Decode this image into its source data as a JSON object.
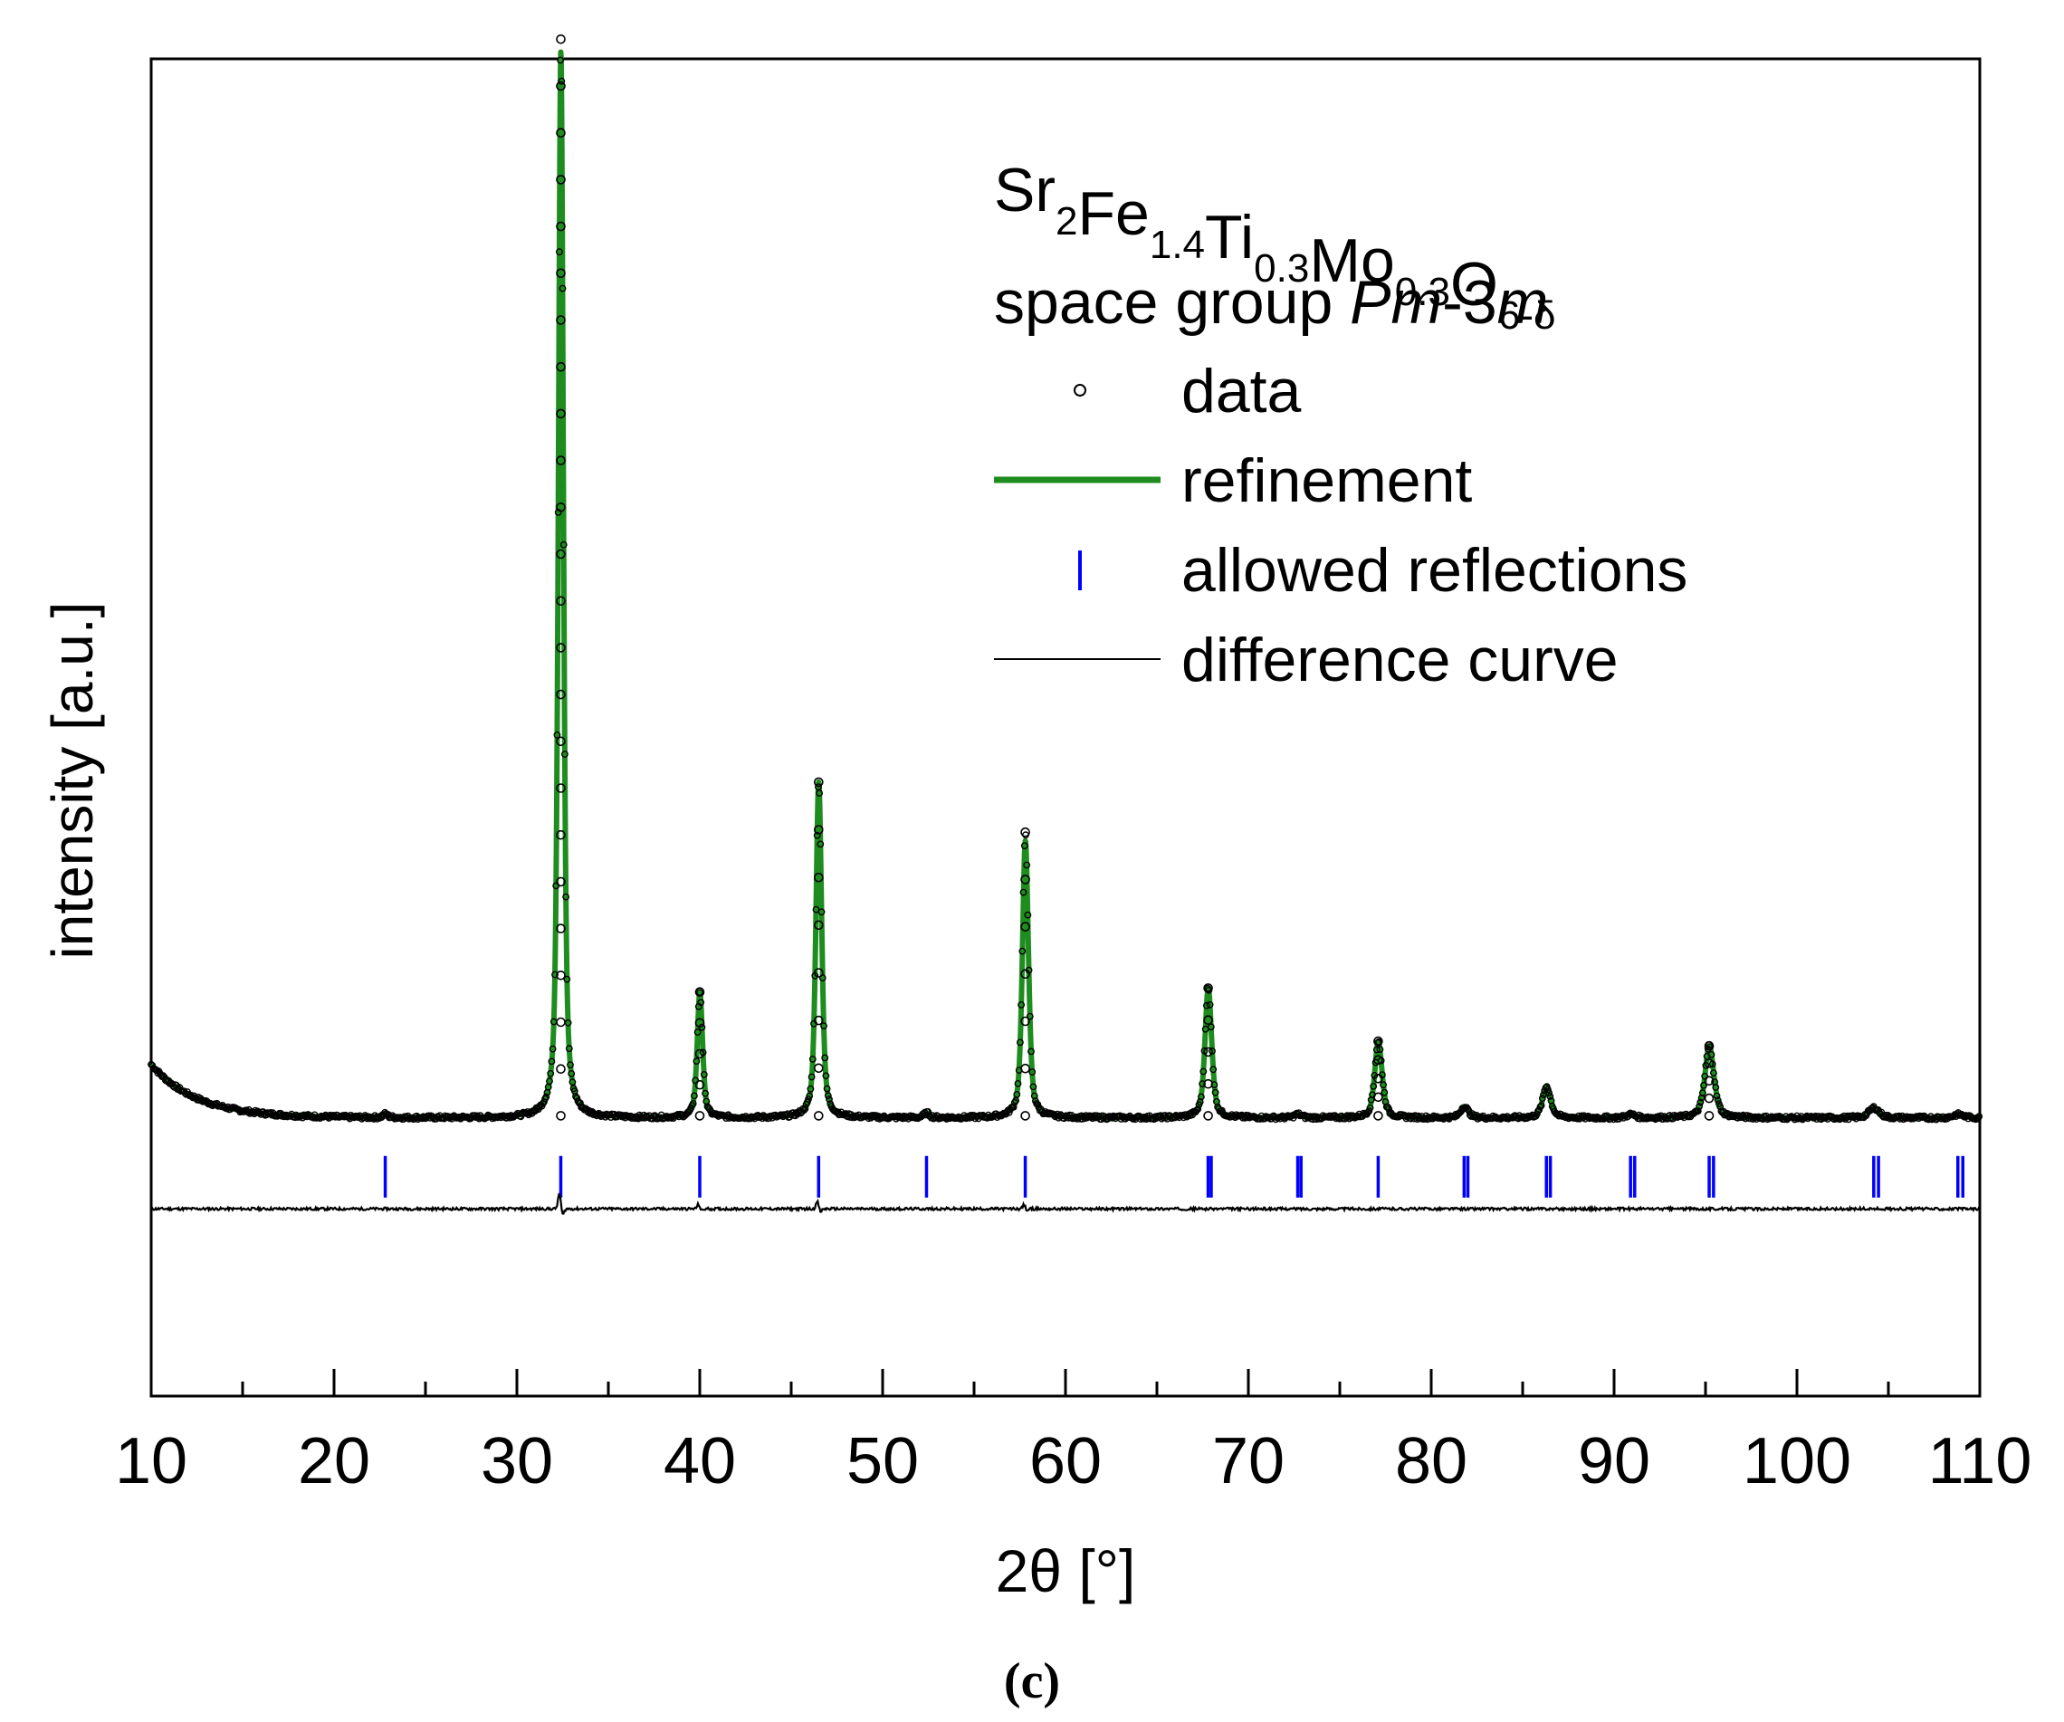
{
  "chart_data": {
    "type": "line",
    "title": "",
    "panel_label": "(c)",
    "xlabel": "2θ [°]",
    "ylabel": "intensity [a.u.]",
    "xlim": [
      10,
      110
    ],
    "ylim": [
      -25,
      100
    ],
    "x_ticks": [
      10,
      20,
      30,
      40,
      50,
      60,
      70,
      80,
      90,
      100,
      110
    ],
    "x_tick_labels": [
      "10",
      "20",
      "30",
      "40",
      "50",
      "60",
      "70",
      "80",
      "90",
      "100",
      "110"
    ],
    "y_ticks_shown": false,
    "annotation": {
      "compound": "Sr2Fe1.4Ti0.3Mo0.3O6-δ",
      "compound_parts": [
        {
          "text": "Sr",
          "sub": "2"
        },
        {
          "text": "Fe",
          "sub": "1.4"
        },
        {
          "text": "Ti",
          "sub": "0.3"
        },
        {
          "text": "Mo",
          "sub": "0.3"
        },
        {
          "text": "O",
          "sub": "6-δ"
        }
      ],
      "space_group_prefix": "space group ",
      "space_group_italic_1": "Pm",
      "space_group_mid": "-3",
      "space_group_italic_2": "m"
    },
    "legend": {
      "position": "top-right",
      "entries": [
        {
          "label": "data",
          "style": "open-circle",
          "color": "#000000"
        },
        {
          "label": "refinement",
          "style": "line",
          "color": "#1e8c1e"
        },
        {
          "label": "allowed reflections",
          "style": "tick",
          "color": "#0000ff"
        },
        {
          "label": "difference curve",
          "style": "line",
          "color": "#000000"
        }
      ]
    },
    "series": [
      {
        "name": "refinement",
        "color": "#1e8c1e",
        "background": {
          "base": 1.0,
          "amp": 5.0,
          "decay": 2.5
        },
        "peaks": [
          {
            "x": 22.8,
            "h": 0.3,
            "w": 0.15
          },
          {
            "x": 32.4,
            "h": 93.0,
            "w": 0.16
          },
          {
            "x": 40.0,
            "h": 11.0,
            "w": 0.17
          },
          {
            "x": 46.5,
            "h": 29.5,
            "w": 0.18
          },
          {
            "x": 52.4,
            "h": 0.4,
            "w": 0.18
          },
          {
            "x": 57.8,
            "h": 24.5,
            "w": 0.19
          },
          {
            "x": 67.8,
            "h": 11.5,
            "w": 0.21
          },
          {
            "x": 72.7,
            "h": 0.3,
            "w": 0.22
          },
          {
            "x": 77.1,
            "h": 6.8,
            "w": 0.23
          },
          {
            "x": 81.8,
            "h": 1.0,
            "w": 0.24
          },
          {
            "x": 86.3,
            "h": 2.8,
            "w": 0.25
          },
          {
            "x": 90.9,
            "h": 0.3,
            "w": 0.26
          },
          {
            "x": 95.2,
            "h": 6.4,
            "w": 0.28
          },
          {
            "x": 104.2,
            "h": 0.9,
            "w": 0.32
          },
          {
            "x": 108.8,
            "h": 0.3,
            "w": 0.33
          }
        ]
      },
      {
        "name": "data",
        "color": "#000000",
        "marker": "open-circle",
        "peak_top_offsets": [
          {
            "x": 32.4,
            "extra": 1.2
          },
          {
            "x": 57.8,
            "extra": 0.8
          }
        ]
      },
      {
        "name": "difference curve",
        "color": "#000000",
        "baseline": -7.5,
        "features": [
          {
            "x": 32.4,
            "amp": 1.2
          },
          {
            "x": 40.0,
            "amp": 0.35
          },
          {
            "x": 46.5,
            "amp": 0.55
          },
          {
            "x": 57.8,
            "amp": 0.3
          }
        ]
      },
      {
        "name": "allowed reflections",
        "color": "#0000ff",
        "level": -4.5,
        "positions": [
          22.8,
          32.4,
          40.0,
          46.5,
          52.4,
          57.8,
          67.8,
          72.7,
          77.1,
          81.8,
          86.3,
          90.9,
          95.2,
          104.2,
          108.8
        ],
        "doublets": [
          false,
          false,
          false,
          false,
          false,
          false,
          true,
          true,
          false,
          true,
          true,
          true,
          true,
          true,
          true
        ]
      }
    ]
  }
}
